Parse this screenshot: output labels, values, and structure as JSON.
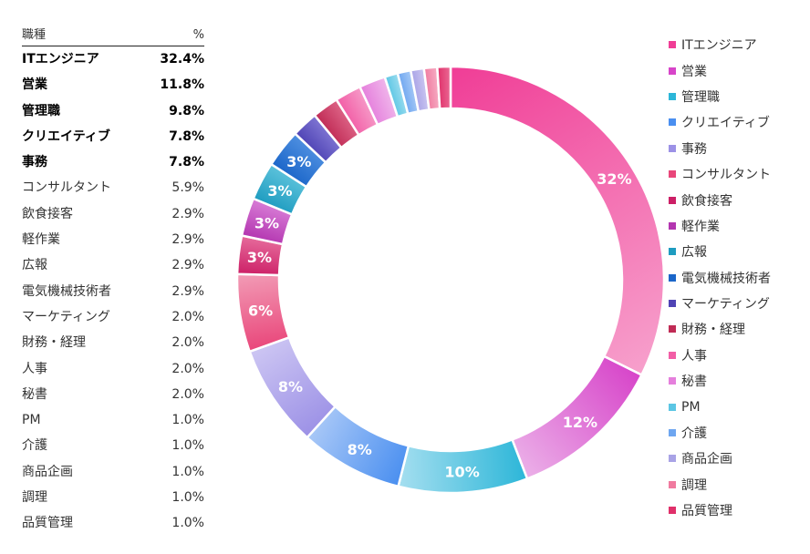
{
  "table": {
    "header": {
      "category": "職種",
      "percent": "%"
    },
    "rows": [
      {
        "category": "ITエンジニア",
        "percent": "32.4%",
        "bold": true
      },
      {
        "category": "営業",
        "percent": "11.8%",
        "bold": true
      },
      {
        "category": "管理職",
        "percent": "9.8%",
        "bold": true
      },
      {
        "category": "クリエイティブ",
        "percent": "7.8%",
        "bold": true
      },
      {
        "category": "事務",
        "percent": "7.8%",
        "bold": true
      },
      {
        "category": "コンサルタント",
        "percent": "5.9%",
        "bold": false
      },
      {
        "category": "飲食接客",
        "percent": "2.9%",
        "bold": false
      },
      {
        "category": "軽作業",
        "percent": "2.9%",
        "bold": false
      },
      {
        "category": "広報",
        "percent": "2.9%",
        "bold": false
      },
      {
        "category": "電気機械技術者",
        "percent": "2.9%",
        "bold": false
      },
      {
        "category": "マーケティング",
        "percent": "2.0%",
        "bold": false
      },
      {
        "category": "財務・経理",
        "percent": "2.0%",
        "bold": false
      },
      {
        "category": "人事",
        "percent": "2.0%",
        "bold": false
      },
      {
        "category": "秘書",
        "percent": "2.0%",
        "bold": false
      },
      {
        "category": "PM",
        "percent": "1.0%",
        "bold": false
      },
      {
        "category": "介護",
        "percent": "1.0%",
        "bold": false
      },
      {
        "category": "商品企画",
        "percent": "1.0%",
        "bold": false
      },
      {
        "category": "調理",
        "percent": "1.0%",
        "bold": false
      },
      {
        "category": "品質管理",
        "percent": "1.0%",
        "bold": false
      }
    ]
  },
  "chart_data": {
    "type": "pie",
    "categories": [
      "ITエンジニア",
      "営業",
      "管理職",
      "クリエイティブ",
      "事務",
      "コンサルタント",
      "飲食接客",
      "軽作業",
      "広報",
      "電気機械技術者",
      "マーケティング",
      "財務・経理",
      "人事",
      "秘書",
      "PM",
      "介護",
      "商品企画",
      "調理",
      "品質管理"
    ],
    "values": [
      32.4,
      11.8,
      9.8,
      7.8,
      7.8,
      5.9,
      2.9,
      2.9,
      2.9,
      2.9,
      2.0,
      2.0,
      2.0,
      2.0,
      1.0,
      1.0,
      1.0,
      1.0,
      1.0
    ],
    "slice_labels": [
      "32%",
      "12%",
      "10%",
      "8%",
      "8%",
      "6%",
      "3%",
      "3%",
      "3%",
      "3%",
      "",
      "",
      "",
      "",
      "",
      "",
      "",
      "",
      ""
    ],
    "colors": [
      [
        "#f03d96",
        "#f7a0cc"
      ],
      [
        "#d744c9",
        "#ebb0e8"
      ],
      [
        "#2cb6d8",
        "#a6dff0"
      ],
      [
        "#4a8ff0",
        "#a9c8f7"
      ],
      [
        "#9c91e6",
        "#cdc6f3"
      ],
      [
        "#e9467a",
        "#f29cb6"
      ],
      [
        "#cc1f66",
        "#e66b9c"
      ],
      [
        "#b335b0",
        "#d87cd6"
      ],
      [
        "#1e9cc0",
        "#5cc2db"
      ],
      [
        "#1b66c9",
        "#4e8fe0"
      ],
      [
        "#4f44b5",
        "#7f75d3"
      ],
      [
        "#c02b55",
        "#dd6386"
      ],
      [
        "#f25ea6",
        "#f69ac8"
      ],
      [
        "#e57fdc",
        "#f0b6eb"
      ],
      [
        "#5cc6e4",
        "#9bdcef"
      ],
      [
        "#6ea6f0",
        "#a6c9f6"
      ],
      [
        "#a9a3e6",
        "#cbc7f1"
      ],
      [
        "#f07a9f",
        "#f6aec4"
      ],
      [
        "#e0306a",
        "#ea6b95"
      ]
    ],
    "legend_position": "right"
  }
}
